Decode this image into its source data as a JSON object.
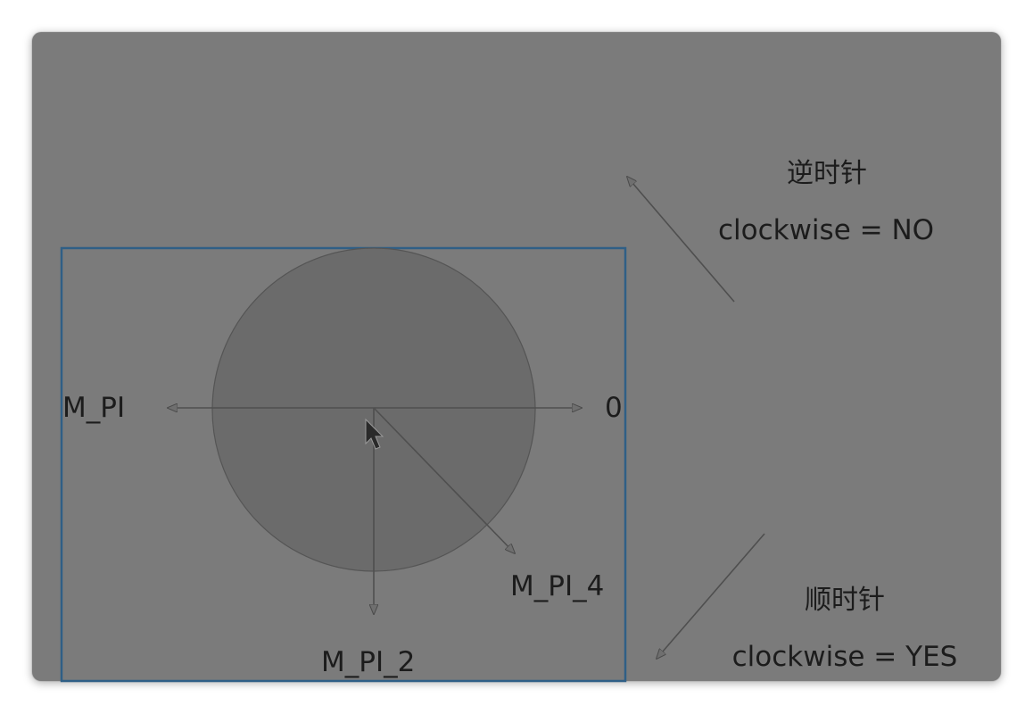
{
  "angle_labels": {
    "zero": "0",
    "pi": "M_PI",
    "pi_2": "M_PI_2",
    "pi_4": "M_PI_4"
  },
  "counterclockwise": {
    "title": "逆时针",
    "caption": "clockwise = NO"
  },
  "clockwise": {
    "title": "顺时针",
    "caption": "clockwise = YES"
  },
  "colors": {
    "background": "#7b7b7b",
    "circle_fill": "#6b6b6b",
    "frame_border": "#2f5f86",
    "arrow": "#4f4f4f"
  }
}
